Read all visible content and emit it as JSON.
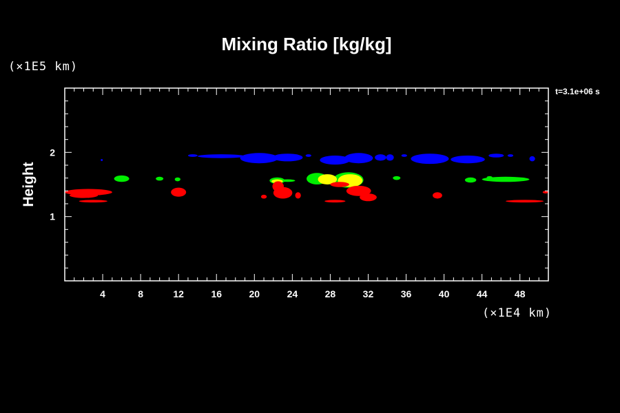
{
  "chart_data": {
    "type": "heatmap",
    "title": "Mixing Ratio [kg/kg]",
    "xlabel": "",
    "ylabel": "Height",
    "x_unit_label": "(×1E4 km)",
    "y_unit_label": "(×1E5 km)",
    "time_label": "t=3.1e+06 s",
    "xlim": [
      0,
      51
    ],
    "ylim": [
      0,
      3
    ],
    "x_ticks": [
      4,
      8,
      12,
      16,
      20,
      24,
      28,
      32,
      36,
      40,
      44,
      48
    ],
    "x_tick_labels": [
      "4",
      "8",
      "12",
      "16",
      "20",
      "24",
      "28",
      "32",
      "36",
      "40",
      "44",
      "48"
    ],
    "y_ticks": [
      1,
      2
    ],
    "y_tick_labels": [
      "1",
      "2"
    ],
    "x_minor_step": 1,
    "y_minor_step": 0.2,
    "grid": false,
    "colors": {
      "background": "#000000",
      "axis": "#ffffff",
      "blue": "#0000ff",
      "green": "#00ee00",
      "red": "#ff0000",
      "yellow": "#ffff00"
    },
    "regions": [
      {
        "color": "blue",
        "x": 13.5,
        "y": 1.95,
        "rx": 0.5,
        "ry": 0.02
      },
      {
        "color": "blue",
        "x": 16.5,
        "y": 1.94,
        "rx": 2.5,
        "ry": 0.03
      },
      {
        "color": "blue",
        "x": 20.5,
        "y": 1.91,
        "rx": 2.0,
        "ry": 0.08
      },
      {
        "color": "blue",
        "x": 23.5,
        "y": 1.92,
        "rx": 1.6,
        "ry": 0.06
      },
      {
        "color": "blue",
        "x": 25.7,
        "y": 1.95,
        "rx": 0.3,
        "ry": 0.02
      },
      {
        "color": "blue",
        "x": 28.5,
        "y": 1.88,
        "rx": 1.6,
        "ry": 0.07
      },
      {
        "color": "blue",
        "x": 31.0,
        "y": 1.91,
        "rx": 1.5,
        "ry": 0.08
      },
      {
        "color": "blue",
        "x": 33.3,
        "y": 1.92,
        "rx": 0.6,
        "ry": 0.05
      },
      {
        "color": "blue",
        "x": 34.3,
        "y": 1.92,
        "rx": 0.4,
        "ry": 0.05
      },
      {
        "color": "blue",
        "x": 35.8,
        "y": 1.95,
        "rx": 0.3,
        "ry": 0.02
      },
      {
        "color": "blue",
        "x": 38.5,
        "y": 1.9,
        "rx": 2.0,
        "ry": 0.08
      },
      {
        "color": "blue",
        "x": 42.5,
        "y": 1.89,
        "rx": 1.8,
        "ry": 0.06
      },
      {
        "color": "blue",
        "x": 45.5,
        "y": 1.95,
        "rx": 0.8,
        "ry": 0.03
      },
      {
        "color": "blue",
        "x": 47.0,
        "y": 1.95,
        "rx": 0.3,
        "ry": 0.02
      },
      {
        "color": "blue",
        "x": 49.3,
        "y": 1.9,
        "rx": 0.3,
        "ry": 0.04
      },
      {
        "color": "blue",
        "x": 3.9,
        "y": 1.88,
        "rx": 0.1,
        "ry": 0.015
      },
      {
        "color": "green",
        "x": 6.0,
        "y": 1.59,
        "rx": 0.8,
        "ry": 0.05
      },
      {
        "color": "green",
        "x": 10.0,
        "y": 1.59,
        "rx": 0.4,
        "ry": 0.03
      },
      {
        "color": "green",
        "x": 11.9,
        "y": 1.58,
        "rx": 0.3,
        "ry": 0.03
      },
      {
        "color": "green",
        "x": 23.5,
        "y": 1.56,
        "rx": 0.8,
        "ry": 0.02
      },
      {
        "color": "green",
        "x": 35.0,
        "y": 1.6,
        "rx": 0.4,
        "ry": 0.03
      },
      {
        "color": "green",
        "x": 42.8,
        "y": 1.57,
        "rx": 0.6,
        "ry": 0.04
      },
      {
        "color": "green",
        "x": 46.5,
        "y": 1.58,
        "rx": 2.5,
        "ry": 0.04
      },
      {
        "color": "green",
        "x": 44.8,
        "y": 1.61,
        "rx": 0.3,
        "ry": 0.02
      },
      {
        "color": "green",
        "x": 26.6,
        "y": 1.59,
        "rx": 1.1,
        "ry": 0.09
      },
      {
        "color": "green",
        "x": 29.9,
        "y": 1.57,
        "rx": 1.6,
        "ry": 0.12
      },
      {
        "color": "green",
        "x": 22.4,
        "y": 1.56,
        "rx": 0.8,
        "ry": 0.05
      },
      {
        "color": "yellow",
        "x": 27.7,
        "y": 1.58,
        "rx": 1.0,
        "ry": 0.08
      },
      {
        "color": "yellow",
        "x": 30.1,
        "y": 1.56,
        "rx": 1.3,
        "ry": 0.1
      },
      {
        "color": "yellow",
        "x": 22.4,
        "y": 1.55,
        "rx": 0.6,
        "ry": 0.03
      },
      {
        "color": "red",
        "x": 2.5,
        "y": 1.38,
        "rx": 2.5,
        "ry": 0.05
      },
      {
        "color": "red",
        "x": 2.0,
        "y": 1.33,
        "rx": 1.5,
        "ry": 0.04
      },
      {
        "color": "red",
        "x": 3.0,
        "y": 1.24,
        "rx": 1.5,
        "ry": 0.02
      },
      {
        "color": "red",
        "x": 12.0,
        "y": 1.38,
        "rx": 0.8,
        "ry": 0.07
      },
      {
        "color": "red",
        "x": 22.5,
        "y": 1.47,
        "rx": 0.6,
        "ry": 0.08
      },
      {
        "color": "red",
        "x": 23.0,
        "y": 1.37,
        "rx": 1.0,
        "ry": 0.09
      },
      {
        "color": "red",
        "x": 21.0,
        "y": 1.31,
        "rx": 0.3,
        "ry": 0.03
      },
      {
        "color": "red",
        "x": 24.6,
        "y": 1.33,
        "rx": 0.3,
        "ry": 0.05
      },
      {
        "color": "red",
        "x": 28.5,
        "y": 1.24,
        "rx": 1.1,
        "ry": 0.02
      },
      {
        "color": "red",
        "x": 29.0,
        "y": 1.5,
        "rx": 1.0,
        "ry": 0.04
      },
      {
        "color": "red",
        "x": 31.0,
        "y": 1.4,
        "rx": 1.3,
        "ry": 0.08
      },
      {
        "color": "red",
        "x": 32.0,
        "y": 1.3,
        "rx": 0.9,
        "ry": 0.06
      },
      {
        "color": "red",
        "x": 39.3,
        "y": 1.33,
        "rx": 0.5,
        "ry": 0.05
      },
      {
        "color": "red",
        "x": 48.5,
        "y": 1.24,
        "rx": 2.0,
        "ry": 0.02
      },
      {
        "color": "red",
        "x": 50.7,
        "y": 1.38,
        "rx": 0.3,
        "ry": 0.02
      }
    ]
  }
}
